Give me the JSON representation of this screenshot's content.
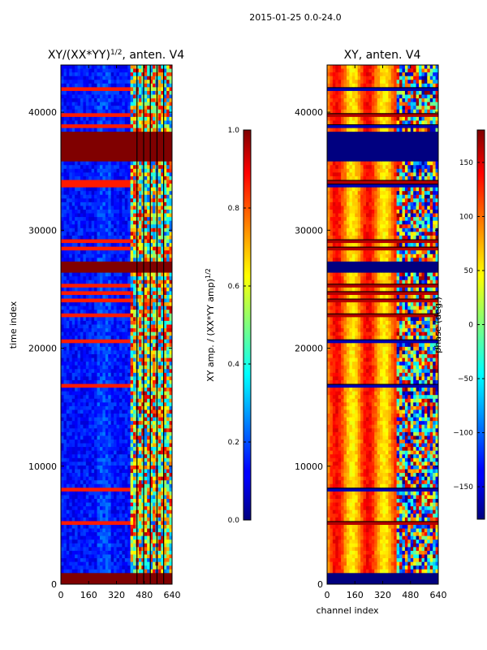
{
  "chart_data": {
    "suptitle": "2015-01-25 0.0-24.0",
    "panels": [
      {
        "type": "heatmap",
        "title": "XY/(XX*YY)1/2, anten. V4",
        "title_base": "XY/(XX*YY)",
        "title_sup": "1/2",
        "title_tail": ", anten. V4",
        "xlabel": "",
        "ylabel": "time index",
        "xlim": [
          0,
          640
        ],
        "ylim": [
          0,
          44000
        ],
        "xticks": [
          "0",
          "160",
          "320",
          "480",
          "640"
        ],
        "yticks": [
          "0",
          "10000",
          "20000",
          "30000",
          "40000"
        ],
        "colorbar": {
          "label": "XY amp. / (XX*YY amp)1/2",
          "label_base": "XY amp. / (XX*YY amp)",
          "label_sup": "1/2",
          "range": [
            0.0,
            1.0
          ],
          "ticks": [
            "0.0",
            "0.2",
            "0.4",
            "0.6",
            "0.8",
            "1.0"
          ]
        }
      },
      {
        "type": "heatmap",
        "title": "XY, anten. V4",
        "xlabel": "channel index",
        "ylabel": "",
        "xlim": [
          0,
          640
        ],
        "ylim": [
          0,
          44000
        ],
        "xticks": [
          "0",
          "160",
          "320",
          "480",
          "640"
        ],
        "yticks": [
          "0",
          "10000",
          "20000",
          "30000",
          "40000"
        ],
        "colorbar": {
          "label": "phase (deg.)",
          "range": [
            -180,
            180
          ],
          "ticks": [
            "−150",
            "−100",
            "−50",
            "0",
            "50",
            "100",
            "150"
          ]
        }
      }
    ]
  }
}
